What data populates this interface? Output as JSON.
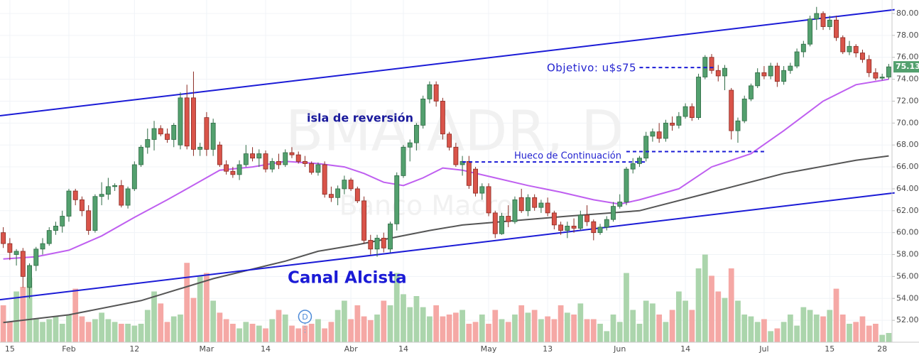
{
  "chart_data": {
    "type": "candlestick",
    "watermark": "BMA:ADR, D",
    "watermark_sub": "Banco Macro",
    "categories": [
      null,
      "15",
      null,
      null,
      null,
      null,
      null,
      null,
      null,
      null,
      "Feb",
      null,
      null,
      null,
      null,
      null,
      null,
      null,
      null,
      null,
      "12",
      null,
      null,
      null,
      null,
      null,
      null,
      null,
      null,
      null,
      null,
      "Mar",
      null,
      null,
      null,
      null,
      null,
      null,
      null,
      null,
      "14",
      null,
      null,
      null,
      null,
      null,
      null,
      null,
      null,
      null,
      null,
      null,
      null,
      "Abr",
      null,
      null,
      null,
      null,
      null,
      null,
      null,
      "14",
      null,
      null,
      null,
      null,
      null,
      null,
      null,
      null,
      null,
      null,
      null,
      null,
      "May",
      null,
      null,
      null,
      null,
      null,
      null,
      null,
      null,
      "13",
      null,
      null,
      null,
      null,
      null,
      null,
      null,
      null,
      null,
      null,
      "Jun",
      null,
      null,
      null,
      null,
      null,
      null,
      null,
      null,
      null,
      "14",
      null,
      null,
      null,
      null,
      null,
      null,
      null,
      null,
      null,
      null,
      null,
      "Jul",
      null,
      null,
      null,
      null,
      null,
      null,
      null,
      null,
      null,
      "15",
      null,
      null,
      null,
      null,
      null,
      null,
      null,
      "28",
      null
    ],
    "ohlc": [
      [
        60,
        60.5,
        58.6,
        59
      ],
      [
        59,
        59.5,
        57.5,
        58.2
      ],
      [
        58,
        58.5,
        57,
        58.3
      ],
      [
        58.3,
        58.6,
        55,
        56
      ],
      [
        55,
        57.2,
        54,
        57
      ],
      [
        57,
        58.7,
        56.5,
        58.5
      ],
      [
        58.5,
        59.5,
        58,
        59
      ],
      [
        59,
        60.5,
        58.8,
        60.2
      ],
      [
        60.2,
        61,
        59.8,
        60.6
      ],
      [
        60.6,
        62,
        60,
        61.5
      ],
      [
        61.5,
        64,
        61,
        63.8
      ],
      [
        63.8,
        64,
        62.5,
        63
      ],
      [
        63,
        63.3,
        61.5,
        62
      ],
      [
        62,
        62.5,
        59.8,
        60.2
      ],
      [
        60.2,
        63.5,
        60,
        63.3
      ],
      [
        63.3,
        64.6,
        62.5,
        63.5
      ],
      [
        63.5,
        65,
        63,
        64.2
      ],
      [
        64.2,
        64.5,
        63.8,
        64.3
      ],
      [
        64.3,
        64.8,
        62.3,
        62.5
      ],
      [
        62.5,
        64.2,
        62.2,
        64
      ],
      [
        64,
        66.5,
        63.8,
        66.2
      ],
      [
        66.2,
        68,
        66,
        67.8
      ],
      [
        67.8,
        69.5,
        67.2,
        68.5
      ],
      [
        68.5,
        70.2,
        67.5,
        69.5
      ],
      [
        69.5,
        69.8,
        68.8,
        69
      ],
      [
        69,
        69.5,
        68.2,
        68.5
      ],
      [
        68.5,
        70,
        67.8,
        69.8
      ],
      [
        68,
        72.8,
        67.6,
        72.3
      ],
      [
        72.3,
        73.5,
        67.6,
        67.9
      ],
      [
        72.3,
        74.7,
        67,
        67.6
      ],
      [
        67.6,
        68.2,
        67,
        67.8
      ],
      [
        70.5,
        71,
        67,
        67.6
      ],
      [
        67.6,
        70.4,
        67,
        70
      ],
      [
        68,
        68.3,
        66,
        66.2
      ],
      [
        66.2,
        66.6,
        65.3,
        65.6
      ],
      [
        65.6,
        66,
        65,
        65.3
      ],
      [
        65.3,
        66.6,
        64.8,
        66.2
      ],
      [
        66.2,
        68,
        66,
        67.2
      ],
      [
        67.2,
        67.8,
        66.5,
        66.8
      ],
      [
        66.8,
        67.6,
        66,
        67.2
      ],
      [
        67.2,
        67.5,
        65.5,
        65.8
      ],
      [
        65.8,
        66.8,
        65.5,
        66.5
      ],
      [
        66.5,
        67.2,
        65.8,
        66.2
      ],
      [
        66.2,
        67.6,
        66,
        67.3
      ],
      [
        67.3,
        67.8,
        66.8,
        67.1
      ],
      [
        67.1,
        67.4,
        66.3,
        66.5
      ],
      [
        66.5,
        67,
        66,
        66.3
      ],
      [
        66.3,
        66.5,
        65.3,
        65.5
      ],
      [
        65.5,
        66.4,
        65.2,
        66.2
      ],
      [
        66.2,
        66.5,
        63.2,
        63.5
      ],
      [
        63.5,
        64.2,
        62.8,
        63.2
      ],
      [
        63.2,
        64.3,
        62.5,
        64
      ],
      [
        64,
        65.2,
        63.5,
        64.8
      ],
      [
        64.8,
        65,
        63.8,
        64
      ],
      [
        64,
        64.2,
        62.7,
        62.9
      ],
      [
        62.9,
        63.3,
        59,
        59.3
      ],
      [
        59.3,
        59.8,
        58,
        58.5
      ],
      [
        58.5,
        59.8,
        57.8,
        59.5
      ],
      [
        59.5,
        60,
        58.2,
        58.6
      ],
      [
        58.5,
        61,
        58.2,
        60.8
      ],
      [
        60.8,
        65.5,
        60.2,
        65.2
      ],
      [
        65.2,
        68,
        65,
        67.8
      ],
      [
        67.8,
        68.5,
        66.5,
        68.2
      ],
      [
        68.2,
        70,
        67.5,
        69.8
      ],
      [
        69.8,
        72.5,
        69.5,
        72.2
      ],
      [
        72.2,
        73.8,
        71.8,
        73.5
      ],
      [
        73.5,
        73.8,
        71.5,
        72
      ],
      [
        72,
        72.3,
        68.5,
        69
      ],
      [
        69,
        69.2,
        67.5,
        67.8
      ],
      [
        67.8,
        68.2,
        66,
        66.2
      ],
      [
        66.2,
        67,
        65.2,
        66.5
      ],
      [
        66.5,
        67,
        64,
        64.3
      ],
      [
        65.8,
        66,
        63.3,
        63.6
      ],
      [
        63.6,
        64.5,
        63,
        64.2
      ],
      [
        64.2,
        64.5,
        61.5,
        61.8
      ],
      [
        61.8,
        62,
        59.5,
        59.9
      ],
      [
        59.9,
        61.8,
        59.8,
        61.5
      ],
      [
        61.5,
        62.5,
        60.5,
        61
      ],
      [
        61,
        63.3,
        60.8,
        63
      ],
      [
        63.2,
        64,
        61.8,
        62
      ],
      [
        62,
        63.5,
        61.5,
        63.2
      ],
      [
        63.2,
        63.5,
        62,
        62.3
      ],
      [
        62.3,
        63,
        61.8,
        62.7
      ],
      [
        62.7,
        63.2,
        61.5,
        61.8
      ],
      [
        61.8,
        62,
        60.3,
        60.7
      ],
      [
        60.7,
        61,
        59.8,
        60.2
      ],
      [
        60.2,
        61,
        59.5,
        60.6
      ],
      [
        60.6,
        61.3,
        60,
        60.4
      ],
      [
        60.4,
        62,
        60.2,
        61.6
      ],
      [
        61.6,
        62.5,
        60.6,
        61
      ],
      [
        61,
        61.2,
        59.3,
        60
      ],
      [
        60,
        60.8,
        59.8,
        60.5
      ],
      [
        60.5,
        61.5,
        60.2,
        61.2
      ],
      [
        61.2,
        62.8,
        61,
        62.4
      ],
      [
        62.4,
        63.5,
        62.2,
        62.8
      ],
      [
        62.8,
        66,
        62.5,
        65.8
      ],
      [
        65.8,
        66.8,
        65.4,
        66.3
      ],
      [
        66.3,
        67,
        66,
        66.8
      ],
      [
        66.8,
        69.2,
        66.5,
        68.8
      ],
      [
        68.8,
        69.5,
        68.3,
        69.2
      ],
      [
        69.2,
        70,
        68.2,
        68.6
      ],
      [
        68.6,
        70.3,
        68.3,
        70
      ],
      [
        70,
        70.6,
        69.3,
        69.8
      ],
      [
        69.8,
        71,
        69.5,
        70.6
      ],
      [
        70.6,
        71.8,
        70.4,
        71.5
      ],
      [
        71.5,
        71.8,
        70.2,
        70.5
      ],
      [
        70.5,
        74.5,
        70.3,
        74.2
      ],
      [
        74.2,
        76.2,
        74,
        76
      ],
      [
        76,
        76.3,
        74.5,
        74.8
      ],
      [
        74.8,
        75.3,
        73.8,
        74.3
      ],
      [
        74.3,
        75.3,
        73,
        75
      ],
      [
        73,
        73.2,
        68.5,
        69.3
      ],
      [
        69.3,
        70.5,
        68.2,
        70.2
      ],
      [
        70.2,
        72.5,
        70,
        72.2
      ],
      [
        72.2,
        73.6,
        72,
        73.4
      ],
      [
        73.4,
        75,
        73.2,
        74.6
      ],
      [
        74.6,
        75.2,
        74,
        74.3
      ],
      [
        74.3,
        75.5,
        74,
        75.2
      ],
      [
        75.2,
        75.5,
        73.3,
        73.8
      ],
      [
        73.8,
        75.2,
        73.5,
        74.8
      ],
      [
        74.8,
        75.5,
        74.5,
        75.2
      ],
      [
        75.2,
        76.8,
        75,
        76.5
      ],
      [
        76.5,
        77.5,
        76,
        77.2
      ],
      [
        77.2,
        79.8,
        77,
        79.5
      ],
      [
        79.5,
        80.6,
        78.5,
        80
      ],
      [
        80,
        80.2,
        78.5,
        78.8
      ],
      [
        78.8,
        79.8,
        78.5,
        79.4
      ],
      [
        79.4,
        79.8,
        77.5,
        77.8
      ],
      [
        77.8,
        78,
        76.3,
        76.5
      ],
      [
        76.5,
        77.5,
        76.2,
        77
      ],
      [
        77,
        77.2,
        76,
        76.4
      ],
      [
        76.4,
        76.7,
        75.5,
        75.8
      ],
      [
        75.8,
        76.2,
        74.2,
        74.6
      ],
      [
        74.6,
        75,
        73.9,
        74.1
      ],
      [
        74.1,
        74.5,
        73.9,
        74.2
      ],
      [
        74.2,
        75.4,
        74,
        75.13
      ]
    ],
    "volume": [
      40,
      22,
      55,
      60,
      70,
      25,
      22,
      25,
      28,
      20,
      30,
      58,
      28,
      22,
      25,
      32,
      25,
      22,
      20,
      20,
      18,
      20,
      35,
      55,
      42,
      22,
      28,
      30,
      86,
      48,
      72,
      75,
      45,
      32,
      25,
      20,
      15,
      22,
      20,
      18,
      15,
      25,
      35,
      30,
      18,
      15,
      18,
      20,
      25,
      15,
      22,
      35,
      45,
      25,
      40,
      28,
      24,
      30,
      45,
      40,
      75,
      52,
      38,
      50,
      38,
      28,
      40,
      28,
      30,
      32,
      35,
      20,
      22,
      30,
      20,
      35,
      25,
      22,
      30,
      40,
      32,
      35,
      25,
      28,
      25,
      40,
      32,
      30,
      42,
      25,
      25,
      20,
      12,
      30,
      22,
      75,
      35,
      20,
      45,
      42,
      30,
      22,
      35,
      55,
      45,
      35,
      80,
      95,
      72,
      55,
      48,
      80,
      45,
      30,
      28,
      22,
      25,
      12,
      15,
      22,
      30,
      18,
      38,
      35,
      30,
      28,
      35,
      58,
      30,
      20,
      22,
      28,
      18,
      20,
      8,
      10
    ],
    "volume_lim": [
      0,
      100
    ],
    "up_color": "#53a06e",
    "down_color": "#d9544a",
    "volume_up_color": "#a6d3a8",
    "volume_down_color": "#f4a3a0",
    "ylim": [
      50,
      81.23
    ],
    "yticks": [
      {
        "value": 52,
        "label": "52.00"
      },
      {
        "value": 54,
        "label": "54.00"
      },
      {
        "value": 56,
        "label": "56.00"
      },
      {
        "value": 58,
        "label": "58.00"
      },
      {
        "value": 60,
        "label": "60.00"
      },
      {
        "value": 62,
        "label": "62.00"
      },
      {
        "value": 64,
        "label": "64.00"
      },
      {
        "value": 66,
        "label": "66.00"
      },
      {
        "value": 68,
        "label": "68.00"
      },
      {
        "value": 70,
        "label": "70.00"
      },
      {
        "value": 72,
        "label": "72.00"
      },
      {
        "value": 74,
        "label": "74.00"
      },
      {
        "value": 76,
        "label": "76.00"
      },
      {
        "value": 78,
        "label": "78.00"
      },
      {
        "value": 80,
        "label": "80.00"
      }
    ],
    "grid": true,
    "moving_averages": [
      {
        "color": "#bf5ff0",
        "x": [
          0,
          5,
          10,
          15,
          20,
          25,
          28,
          33,
          38,
          43,
          48,
          52,
          55,
          58,
          61,
          64,
          67,
          70,
          75,
          80,
          85,
          90,
          94,
          97,
          103,
          108,
          114,
          119,
          125,
          130,
          135
        ],
        "values": [
          57.6,
          57.8,
          58.4,
          59.7,
          61.4,
          63,
          64,
          65.7,
          66,
          66.5,
          66.3,
          66,
          65.4,
          64.6,
          64.3,
          65,
          65.9,
          65.7,
          65,
          64.3,
          63.7,
          63,
          62.6,
          63,
          64,
          66,
          67.2,
          69.3,
          72,
          73.5,
          74
        ]
      },
      {
        "color": "#555555",
        "x": [
          0,
          10,
          21,
          32,
          43,
          48,
          54,
          65,
          70,
          76,
          86,
          97,
          108,
          119,
          130,
          135
        ],
        "values": [
          51.8,
          52.5,
          53.8,
          55.8,
          57.4,
          58.3,
          58.9,
          60.2,
          60.7,
          61,
          61.5,
          62,
          63.7,
          65.4,
          66.6,
          67
        ]
      }
    ],
    "trendlines": [
      {
        "color": "#1b1bd6",
        "x": [
          -0.5,
          135.9
        ],
        "values": [
          70.67,
          80.35
        ]
      },
      {
        "color": "#1b1bd6",
        "x": [
          -0.5,
          135.9
        ],
        "values": [
          53.88,
          63.63
        ]
      }
    ],
    "levels": [
      {
        "x": [
          97,
          108.7
        ],
        "value": 75.07
      },
      {
        "x": [
          95,
          116
        ],
        "value": 67.4
      },
      {
        "x": [
          70,
          98
        ],
        "value": 66.45
      }
    ],
    "annotations": {
      "target": "Objetivo: u$s75",
      "island": "isla de reversión",
      "gap": "Hueco de Continuación",
      "channel": "Canal Alcista"
    },
    "event": {
      "x": 46,
      "label": "D"
    }
  }
}
